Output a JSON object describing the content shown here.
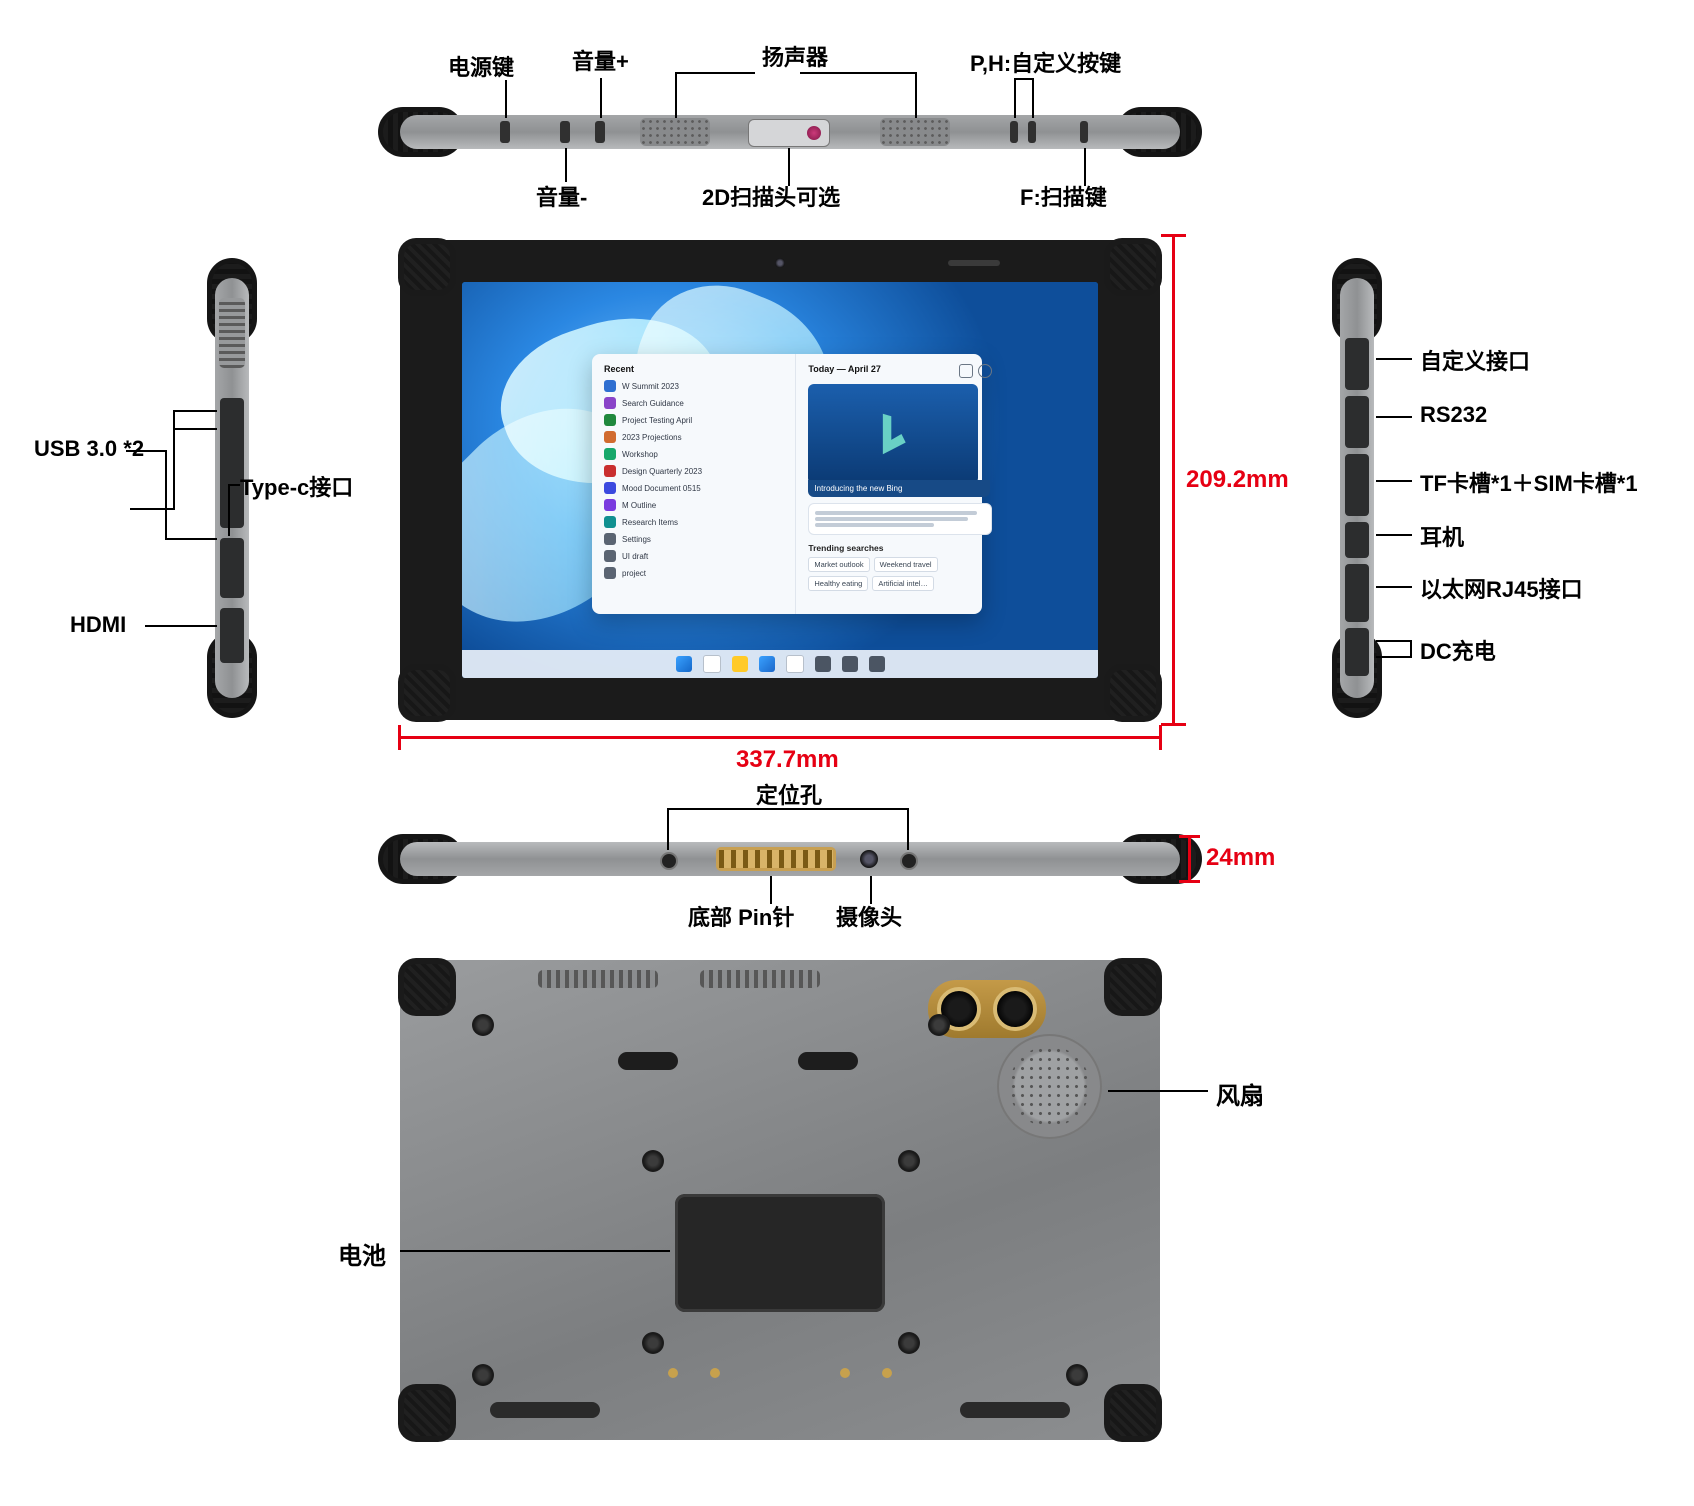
{
  "colors": {
    "dim": "#e60013",
    "body": "#8f9193",
    "cap": "#151515",
    "screen_blue": "#0a66c2",
    "gold": "#c8a052",
    "back": "#8c8e90"
  },
  "font": {
    "family": "Microsoft YaHei",
    "label_pt": 22,
    "dim_pt": 24,
    "weight": 700
  },
  "dimensions": {
    "width_mm": "337.7mm",
    "height_mm": "209.2mm",
    "thickness_mm": "24mm"
  },
  "top_edge": {
    "power": "电源键",
    "vol_up": "音量+",
    "vol_down": "音量-",
    "speaker": "扬声器",
    "scanner": "2D扫描头可选",
    "ph": "P,H:自定义按键",
    "f": "F:扫描键"
  },
  "left_side": {
    "usb3": "USB 3.0 *2",
    "typec": "Type-c接口",
    "hdmi": "HDMI"
  },
  "right_side": {
    "custom": "自定义接口",
    "rs232": "RS232",
    "tfsim": "TF卡槽*1＋SIM卡槽*1",
    "audio": "耳机",
    "rj45": "以太网RJ45接口",
    "dc": "DC充电"
  },
  "bottom_edge": {
    "locator": "定位孔",
    "pins": "底部 Pin针",
    "camera": "摄像头"
  },
  "back_view": {
    "fan": "风扇",
    "battery": "电池"
  },
  "screen_ui": {
    "start_left_title": "Recent",
    "start_right_title": "Today — April 27",
    "bing_line": "Introducing the new Bing",
    "left_items": [
      {
        "c": "#2f6fd1",
        "t": "W Summit 2023"
      },
      {
        "c": "#8a44c9",
        "t": "Search Guidance"
      },
      {
        "c": "#1f883d",
        "t": "Project Testing April"
      },
      {
        "c": "#d16b2f",
        "t": "2023 Projections"
      },
      {
        "c": "#17a86b",
        "t": "Workshop"
      },
      {
        "c": "#c92f2f",
        "t": "Design Quarterly 2023"
      },
      {
        "c": "#3b49df",
        "t": "Mood Document 0515"
      },
      {
        "c": "#7a3bdf",
        "t": "M Outline"
      },
      {
        "c": "#109090",
        "t": "Research Items"
      },
      {
        "c": "#5a6472",
        "t": "Settings"
      },
      {
        "c": "#5a6472",
        "t": "UI draft"
      },
      {
        "c": "#5a6472",
        "t": "project"
      }
    ],
    "trending_title": "Trending searches",
    "trending": [
      "Market outlook",
      "Weekend travel",
      "Healthy eating",
      "Artificial intel…"
    ]
  }
}
